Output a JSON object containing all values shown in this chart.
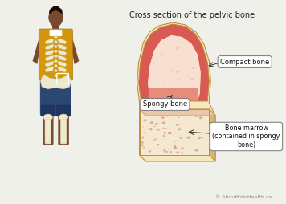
{
  "title": "Cross section of the pelvic bone",
  "title_fontsize": 7.0,
  "copyright_text": "© AboutKidsHealth.ca",
  "copyright_fontsize": 4.5,
  "bg_color": "#f0f0eb",
  "label_compact": "Compact bone",
  "label_spongy": "Spongy bone",
  "label_marrow": "Bone marrow\n(contained in spongy\nbone)",
  "skin_color": "#7B4830",
  "skin_dark": "#5a3318",
  "shirt_color": "#D4960A",
  "pants_color": "#2B4875",
  "skeleton_color": "#ede8d0",
  "skel_edge": "#c8b870",
  "bone_cream": "#f5e8c0",
  "bone_tan": "#e8cc98",
  "bone_edge": "#c0903a",
  "compact_red": "#d44040",
  "spongy_pink": "#e8a090",
  "marrow_cream": "#f5e8d0",
  "marrow_dot": "#d07060"
}
